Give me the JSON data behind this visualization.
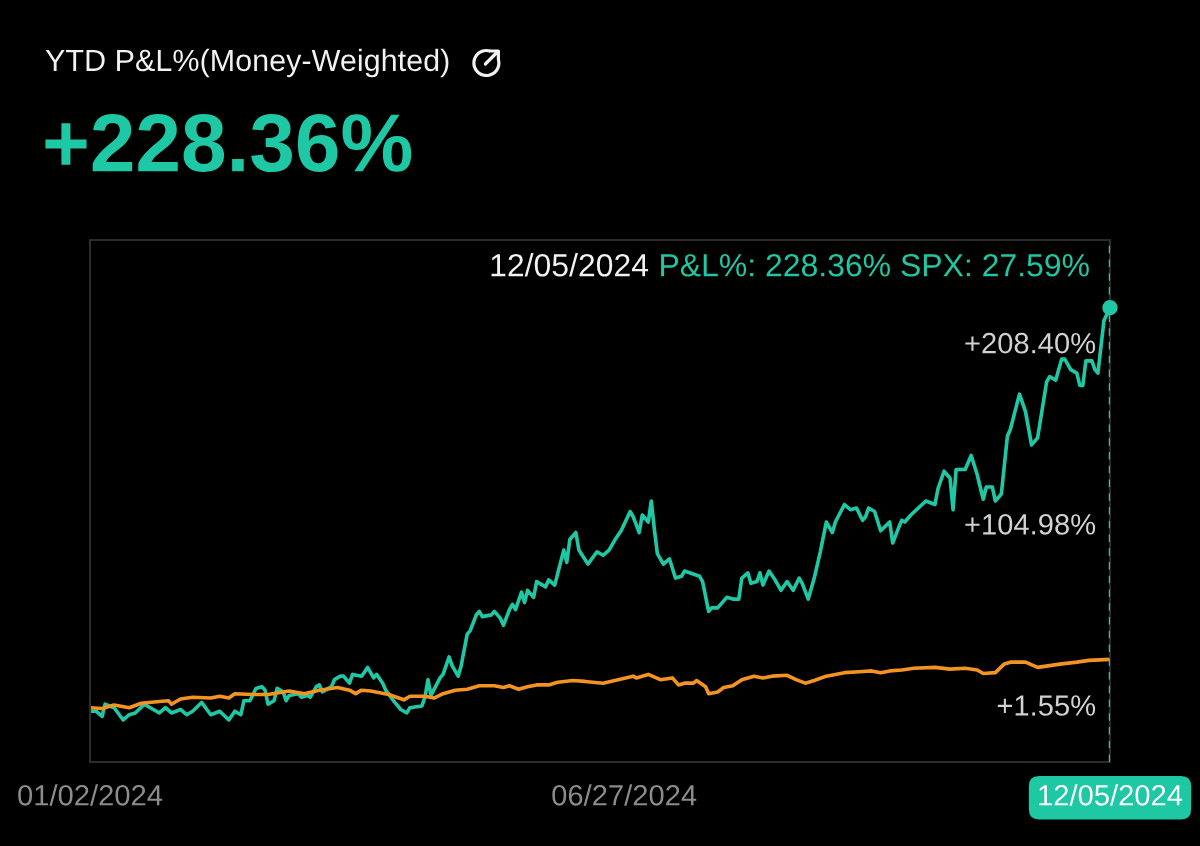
{
  "chart_data": {
    "type": "line",
    "title": "YTD P&L%(Money-Weighted)",
    "subtitle": "+228.36%",
    "annotations": [
      "12/05/2024",
      "P&L%: 228.36% SPX: 27.59%"
    ],
    "xlim": [
      "2024-01-02",
      "2024-12-05"
    ],
    "xticks": [
      {
        "value": "2024-01-02",
        "label": "01/02/2024"
      },
      {
        "value": "2024-06-27",
        "label": "06/27/2024"
      },
      {
        "value": "2024-12-05",
        "label": "12/05/2024"
      }
    ],
    "ylim": [
      -31,
      267
    ],
    "yticks": [
      {
        "value": 1.55,
        "label": "+1.55%"
      },
      {
        "value": 104.98,
        "label": "+104.98%"
      },
      {
        "value": 208.4,
        "label": "+208.40%"
      }
    ],
    "ref_lines": [
      {
        "axis": "x",
        "value": "2024-12-05",
        "color": "#1fc8a4",
        "line_style": "dashed"
      }
    ],
    "series": [
      {
        "color": "#1fc8a4",
        "x": [
          "2024-01-02",
          "2024-01-04",
          "2024-01-06",
          "2024-01-07",
          "2024-01-10",
          "2024-01-13",
          "2024-01-15",
          "2024-01-17",
          "2024-01-20",
          "2024-01-24",
          "2024-01-25",
          "2024-01-27",
          "2024-01-29",
          "2024-02-01",
          "2024-02-03",
          "2024-02-05",
          "2024-02-08",
          "2024-02-11",
          "2024-02-14",
          "2024-02-17",
          "2024-02-19",
          "2024-02-21",
          "2024-02-22",
          "2024-02-24",
          "2024-02-26",
          "2024-02-28",
          "2024-02-29",
          "2024-03-01",
          "2024-03-03",
          "2024-03-04",
          "2024-03-06",
          "2024-03-07",
          "2024-03-08",
          "2024-03-11",
          "2024-03-12",
          "2024-03-14",
          "2024-03-15",
          "2024-03-17",
          "2024-03-18",
          "2024-03-19",
          "2024-03-22",
          "2024-03-23",
          "2024-03-25",
          "2024-03-26",
          "2024-03-28",
          "2024-03-29",
          "2024-04-01",
          "2024-04-03",
          "2024-04-05",
          "2024-04-06",
          "2024-04-08",
          "2024-04-09",
          "2024-04-12",
          "2024-04-14",
          "2024-04-16",
          "2024-04-17",
          "2024-04-21",
          "2024-04-22",
          "2024-04-23",
          "2024-04-24",
          "2024-04-27",
          "2024-04-28",
          "2024-04-30",
          "2024-05-01",
          "2024-05-03",
          "2024-05-04",
          "2024-05-06",
          "2024-05-07",
          "2024-05-09",
          "2024-05-10",
          "2024-05-11",
          "2024-05-14",
          "2024-05-15",
          "2024-05-17",
          "2024-05-18",
          "2024-05-20",
          "2024-05-21",
          "2024-05-22",
          "2024-05-24",
          "2024-05-25",
          "2024-05-26",
          "2024-05-28",
          "2024-05-29",
          "2024-06-01",
          "2024-06-02",
          "2024-06-04",
          "2024-06-07",
          "2024-06-08",
          "2024-06-09",
          "2024-06-11",
          "2024-06-12",
          "2024-06-15",
          "2024-06-18",
          "2024-06-20",
          "2024-06-22",
          "2024-06-24",
          "2024-06-26",
          "2024-06-29",
          "2024-06-30",
          "2024-07-02",
          "2024-07-03",
          "2024-07-05",
          "2024-07-06",
          "2024-07-07",
          "2024-07-08",
          "2024-07-10",
          "2024-07-12",
          "2024-07-14",
          "2024-07-16",
          "2024-07-17",
          "2024-07-22",
          "2024-07-23",
          "2024-07-25",
          "2024-07-26",
          "2024-07-28",
          "2024-07-31",
          "2024-08-02",
          "2024-08-04",
          "2024-08-05",
          "2024-08-07",
          "2024-08-08",
          "2024-08-10",
          "2024-08-11",
          "2024-08-12",
          "2024-08-14",
          "2024-08-16",
          "2024-08-18",
          "2024-08-20",
          "2024-08-22",
          "2024-08-24",
          "2024-08-25",
          "2024-08-27",
          "2024-08-29",
          "2024-08-31",
          "2024-09-02",
          "2024-09-04",
          "2024-09-05",
          "2024-09-08",
          "2024-09-10",
          "2024-09-12",
          "2024-09-14",
          "2024-09-15",
          "2024-09-16",
          "2024-09-18",
          "2024-09-20",
          "2024-09-23",
          "2024-09-24",
          "2024-09-26",
          "2024-09-27",
          "2024-09-28",
          "2024-09-30",
          "2024-10-05",
          "2024-10-08",
          "2024-10-09",
          "2024-10-11",
          "2024-10-13",
          "2024-10-14",
          "2024-10-15",
          "2024-10-18",
          "2024-10-20",
          "2024-10-22",
          "2024-10-24",
          "2024-10-25",
          "2024-10-27",
          "2024-10-28",
          "2024-10-30",
          "2024-11-01",
          "2024-11-02",
          "2024-11-05",
          "2024-11-07",
          "2024-11-09",
          "2024-11-11",
          "2024-11-14",
          "2024-11-15",
          "2024-11-17",
          "2024-11-19",
          "2024-11-20",
          "2024-11-22",
          "2024-11-24",
          "2024-11-25",
          "2024-11-26",
          "2024-11-27",
          "2024-11-29",
          "2024-11-30",
          "2024-12-01",
          "2024-12-03",
          "2024-12-05"
        ],
        "values": [
          -2,
          -2,
          -5,
          2,
          0,
          -7,
          -4,
          -3,
          2,
          -2,
          -3,
          0,
          -3,
          -1,
          -4,
          -2,
          3,
          -4,
          -2,
          -7,
          -2,
          -4,
          4,
          4,
          11,
          12,
          10,
          2,
          4,
          11,
          9,
          4,
          7,
          8,
          6,
          7,
          6,
          12,
          13,
          9,
          12,
          16,
          18,
          18,
          14,
          19,
          18,
          23,
          17,
          19,
          14,
          10,
          3,
          -1,
          -3,
          0,
          1,
          6,
          16,
          7,
          17,
          19,
          29,
          24,
          18,
          24,
          42,
          44,
          53,
          55,
          52,
          53,
          55,
          51,
          47,
          56,
          59,
          56,
          66,
          60,
          67,
          63,
          72,
          69,
          73,
          70,
          90,
          83,
          96,
          100,
          90,
          82,
          89,
          87,
          90,
          96,
          101,
          112,
          109,
          100,
          110,
          106,
          118,
          102,
          88,
          82,
          85,
          74,
          75,
          78,
          75,
          72,
          55,
          57,
          57,
          63,
          62,
          62,
          74,
          77,
          71,
          72,
          77,
          70,
          78,
          73,
          67,
          72,
          67,
          74,
          71,
          62,
          74,
          89,
          106,
          100,
          106,
          116,
          113,
          114,
          107,
          109,
          114,
          112,
          101,
          106,
          94,
          103,
          107,
          106,
          110,
          118,
          116,
          125,
          135,
          131,
          113,
          136,
          136,
          144,
          133,
          119,
          126,
          126,
          118,
          122,
          155,
          159,
          179,
          169,
          150,
          154,
          186,
          189,
          187,
          199,
          199,
          193,
          191,
          184,
          184,
          198,
          198,
          193,
          191,
          221,
          228.36
        ]
      },
      {
        "color": "#f39322",
        "x": [
          "2024-01-02",
          "2024-01-06",
          "2024-01-10",
          "2024-01-15",
          "2024-01-19",
          "2024-01-25",
          "2024-01-28",
          "2024-01-29",
          "2024-02-01",
          "2024-02-05",
          "2024-02-11",
          "2024-02-14",
          "2024-02-17",
          "2024-02-19",
          "2024-02-25",
          "2024-03-01",
          "2024-03-08",
          "2024-03-13",
          "2024-03-18",
          "2024-03-24",
          "2024-03-28",
          "2024-03-30",
          "2024-04-01",
          "2024-04-04",
          "2024-04-10",
          "2024-04-15",
          "2024-04-17",
          "2024-04-22",
          "2024-04-25",
          "2024-04-28",
          "2024-05-02",
          "2024-05-06",
          "2024-05-10",
          "2024-05-15",
          "2024-05-18",
          "2024-05-20",
          "2024-05-23",
          "2024-05-26",
          "2024-05-29",
          "2024-06-02",
          "2024-06-05",
          "2024-06-10",
          "2024-06-14",
          "2024-06-20",
          "2024-06-30",
          "2024-07-01",
          "2024-07-05",
          "2024-07-09",
          "2024-07-13",
          "2024-07-15",
          "2024-07-17",
          "2024-07-20",
          "2024-07-21",
          "2024-07-24",
          "2024-07-25",
          "2024-07-28",
          "2024-07-30",
          "2024-08-02",
          "2024-08-05",
          "2024-08-09",
          "2024-08-12",
          "2024-08-15",
          "2024-08-20",
          "2024-08-23",
          "2024-08-26",
          "2024-08-29",
          "2024-09-02",
          "2024-09-08",
          "2024-09-13",
          "2024-09-17",
          "2024-09-20",
          "2024-09-23",
          "2024-09-27",
          "2024-10-01",
          "2024-10-08",
          "2024-10-13",
          "2024-10-18",
          "2024-10-22",
          "2024-10-24",
          "2024-10-28",
          "2024-10-31",
          "2024-11-02",
          "2024-11-07",
          "2024-11-11",
          "2024-11-15",
          "2024-11-19",
          "2024-11-24",
          "2024-11-28",
          "2024-12-05"
        ],
        "values": [
          0,
          -0.5,
          1.5,
          0,
          2.5,
          3.5,
          4,
          2,
          5,
          6,
          5.5,
          6.5,
          5.5,
          8,
          7.5,
          7.5,
          9.5,
          8,
          10,
          11.5,
          10,
          8,
          10,
          9.5,
          7.5,
          4.5,
          6.5,
          6.5,
          5.5,
          8,
          10,
          10.5,
          12.5,
          12.5,
          11.5,
          12.5,
          10.5,
          12,
          13,
          13,
          14.5,
          15.5,
          15,
          14,
          18,
          17,
          19,
          16,
          17,
          13,
          14,
          14,
          15.5,
          12,
          8,
          9,
          11.5,
          12.5,
          16,
          18,
          17,
          18,
          18.5,
          16,
          14,
          15.5,
          18,
          20,
          20.5,
          21,
          20,
          21,
          21.5,
          22.5,
          23,
          22,
          22.5,
          21.5,
          19.5,
          20,
          25,
          26,
          26,
          23,
          24,
          25,
          26,
          27,
          27.59
        ]
      },
      {
        "type": "scatter",
        "color": "#1fc8a4",
        "marker": "circle",
        "x": [
          "2024-12-05"
        ],
        "values": [
          228.36
        ]
      }
    ]
  }
}
